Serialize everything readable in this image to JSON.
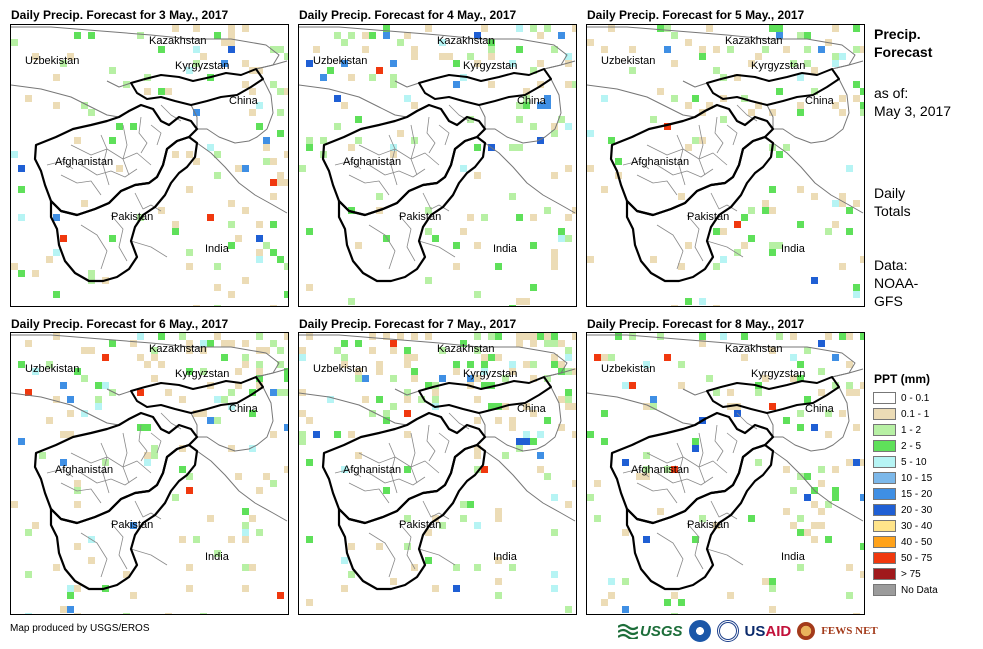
{
  "panels": [
    {
      "title": "Daily Precip. Forecast for 3 May., 2017",
      "seed": 11,
      "intensity": 0.6,
      "east_heavy": 1.0,
      "north_heavy": 0.3
    },
    {
      "title": "Daily Precip. Forecast for 4 May., 2017",
      "seed": 23,
      "intensity": 0.5,
      "east_heavy": 0.7,
      "north_heavy": 0.4
    },
    {
      "title": "Daily Precip. Forecast for 5 May., 2017",
      "seed": 37,
      "intensity": 0.55,
      "east_heavy": 0.6,
      "north_heavy": 0.7
    },
    {
      "title": "Daily Precip. Forecast for 6 May., 2017",
      "seed": 41,
      "intensity": 0.7,
      "east_heavy": 0.4,
      "north_heavy": 0.8
    },
    {
      "title": "Daily Precip. Forecast for 7 May., 2017",
      "seed": 53,
      "intensity": 0.75,
      "east_heavy": 0.4,
      "north_heavy": 1.0
    },
    {
      "title": "Daily Precip. Forecast for 8 May., 2017",
      "seed": 67,
      "intensity": 0.45,
      "east_heavy": 0.5,
      "north_heavy": 0.5
    }
  ],
  "country_labels": {
    "kazakhstan": "Kazakhstan",
    "uzbekistan": "Uzbekistan",
    "kyrgyzstan": "Kyrgyzstan",
    "china": "China",
    "afghanistan": "Afghanistan",
    "pakistan": "Pakistan",
    "india": "India"
  },
  "side_panel": {
    "title_line1": "Precip.",
    "title_line2": "Forecast",
    "asof_line1": "as of:",
    "asof_line2": "May 3, 2017",
    "daily_line1": "Daily",
    "daily_line2": "Totals",
    "data_line1": "Data:",
    "data_line2": "NOAA-",
    "data_line3": "GFS"
  },
  "legend": {
    "title": "PPT (mm)",
    "items": [
      {
        "label": "0 - 0.1",
        "color": "#ffffff"
      },
      {
        "label": "0.1 - 1",
        "color": "#ecdcb6"
      },
      {
        "label": "1 - 2",
        "color": "#b7f0a4"
      },
      {
        "label": "2 - 5",
        "color": "#5fe05a"
      },
      {
        "label": "5 - 10",
        "color": "#b6f4f4"
      },
      {
        "label": "10 - 15",
        "color": "#7cb8ea"
      },
      {
        "label": "15 - 20",
        "color": "#3f8fe4"
      },
      {
        "label": "20 - 30",
        "color": "#1f5fd4"
      },
      {
        "label": "30 - 40",
        "color": "#ffe48a"
      },
      {
        "label": "40 - 50",
        "color": "#ffa21a"
      },
      {
        "label": "50 - 75",
        "color": "#f0380e"
      },
      {
        "label": "> 75",
        "color": "#a0191c"
      },
      {
        "label": "No Data",
        "color": "#9b9b9b"
      }
    ]
  },
  "footer": {
    "credit": "Map produced by USGS/EROS",
    "logo_usgs": "USGS",
    "logo_usaid_a": "US",
    "logo_usaid_b": "AID",
    "logo_fews": "FEWS NET"
  }
}
